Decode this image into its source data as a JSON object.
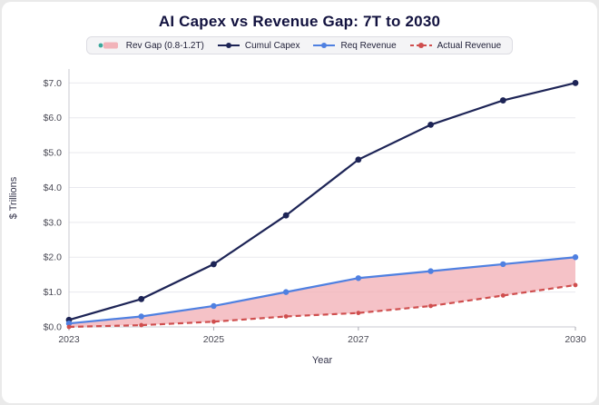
{
  "chart_data": {
    "type": "line",
    "title": "AI Capex vs Revenue Gap: 7T to 2030",
    "xlabel": "Year",
    "ylabel": "$ Trillions",
    "x": [
      2023,
      2024,
      2025,
      2026,
      2027,
      2028,
      2029,
      2030
    ],
    "series": [
      {
        "name": "Cumul Capex",
        "color": "#1d2456",
        "style": "solid",
        "marker_r": 3.4,
        "values": [
          0.2,
          0.8,
          1.8,
          3.2,
          4.8,
          5.8,
          6.5,
          7.0
        ]
      },
      {
        "name": "Req Revenue",
        "color": "#4f80e1",
        "style": "solid",
        "marker_r": 3.2,
        "values": [
          0.1,
          0.3,
          0.6,
          1.0,
          1.4,
          1.6,
          1.8,
          2.0
        ]
      },
      {
        "name": "Actual Revenue",
        "color": "#cf4e4e",
        "style": "dashed",
        "marker_r": 2.4,
        "values": [
          0.0,
          0.05,
          0.15,
          0.3,
          0.4,
          0.6,
          0.9,
          1.2
        ]
      }
    ],
    "area": {
      "name": "Rev Gap (0.8-1.2T)",
      "upper": "Req Revenue",
      "lower": "Actual Revenue",
      "fill": "#f2b3b9",
      "opacity": 0.8
    },
    "ylim": [
      0,
      7.4
    ],
    "yticks": [
      0,
      1,
      2,
      3,
      4,
      5,
      6,
      7
    ],
    "ytick_labels": [
      "$0.0",
      "$1.0",
      "$2.0",
      "$3.0",
      "$4.0",
      "$5.0",
      "$6.0",
      "$7.0"
    ],
    "xticks": [
      2023,
      2025,
      2027,
      2030
    ],
    "grid": true,
    "legend_position": "top",
    "legend": [
      {
        "label": "Rev Gap (0.8-1.2T)",
        "swatch": "area",
        "color": "#f2b3b9",
        "dot": "#3aa79b"
      },
      {
        "label": "Cumul Capex",
        "swatch": "line-dot",
        "color": "#1d2456"
      },
      {
        "label": "Req Revenue",
        "swatch": "line-dot",
        "color": "#4f80e1"
      },
      {
        "label": "Actual Revenue",
        "swatch": "dash-dot",
        "color": "#cf4e4e"
      }
    ]
  }
}
